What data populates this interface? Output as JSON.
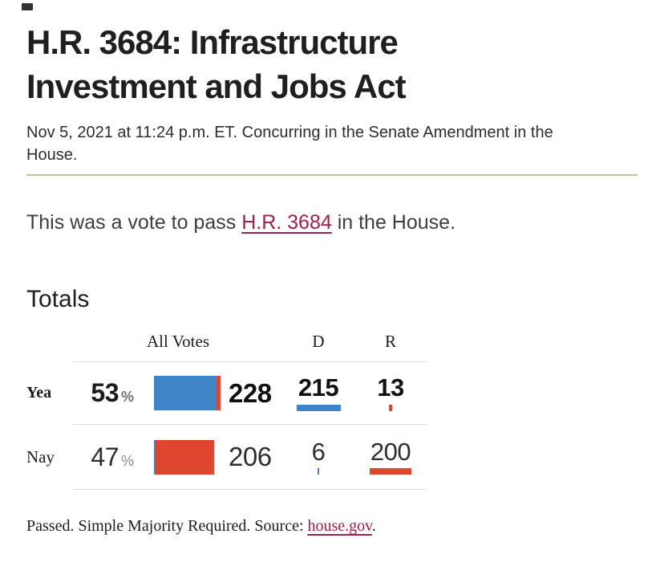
{
  "header": {
    "title": "H.R. 3684: Infrastructure Investment and Jobs Act",
    "subtitle": "Nov 5, 2021 at 11:24 p.m. ET. Concurring in the Senate Amendment in the House."
  },
  "summary": {
    "text_before_link": "This was a vote to pass ",
    "link_text": "H.R. 3684",
    "text_after_link": " in the House."
  },
  "totals": {
    "heading": "Totals",
    "columns": {
      "all_votes": "All Votes",
      "d": "D",
      "r": "R"
    },
    "rows": [
      {
        "label": "Yea",
        "percent": "53",
        "percent_sign": "%",
        "total": "228",
        "d": "215",
        "r": "13"
      },
      {
        "label": "Nay",
        "percent": "47",
        "percent_sign": "%",
        "total": "206",
        "d": "6",
        "r": "200"
      }
    ]
  },
  "footer": {
    "text_before_link": "Passed. Simple Majority Required. Source: ",
    "link_text": "house.gov",
    "text_after_link": "."
  },
  "colors": {
    "democrat_blue": "#3d85c6",
    "republican_red": "#e0452f",
    "link_maroon": "#9d2146",
    "divider_olive": "#c5c39c"
  },
  "chart_data": {
    "type": "bar",
    "title": "Totals",
    "categories": [
      "Yea",
      "Nay"
    ],
    "series": [
      {
        "name": "All Votes",
        "values": [
          228,
          206
        ]
      },
      {
        "name": "D",
        "values": [
          215,
          6
        ]
      },
      {
        "name": "R",
        "values": [
          13,
          200
        ]
      }
    ],
    "percent_values": [
      53,
      47
    ],
    "notes": "Yea bar = 215 D (blue) + 13 R (red); Nay bar = 6 D (blue) + 200 R (red); mini-bars under D/R counts proportional to count"
  }
}
